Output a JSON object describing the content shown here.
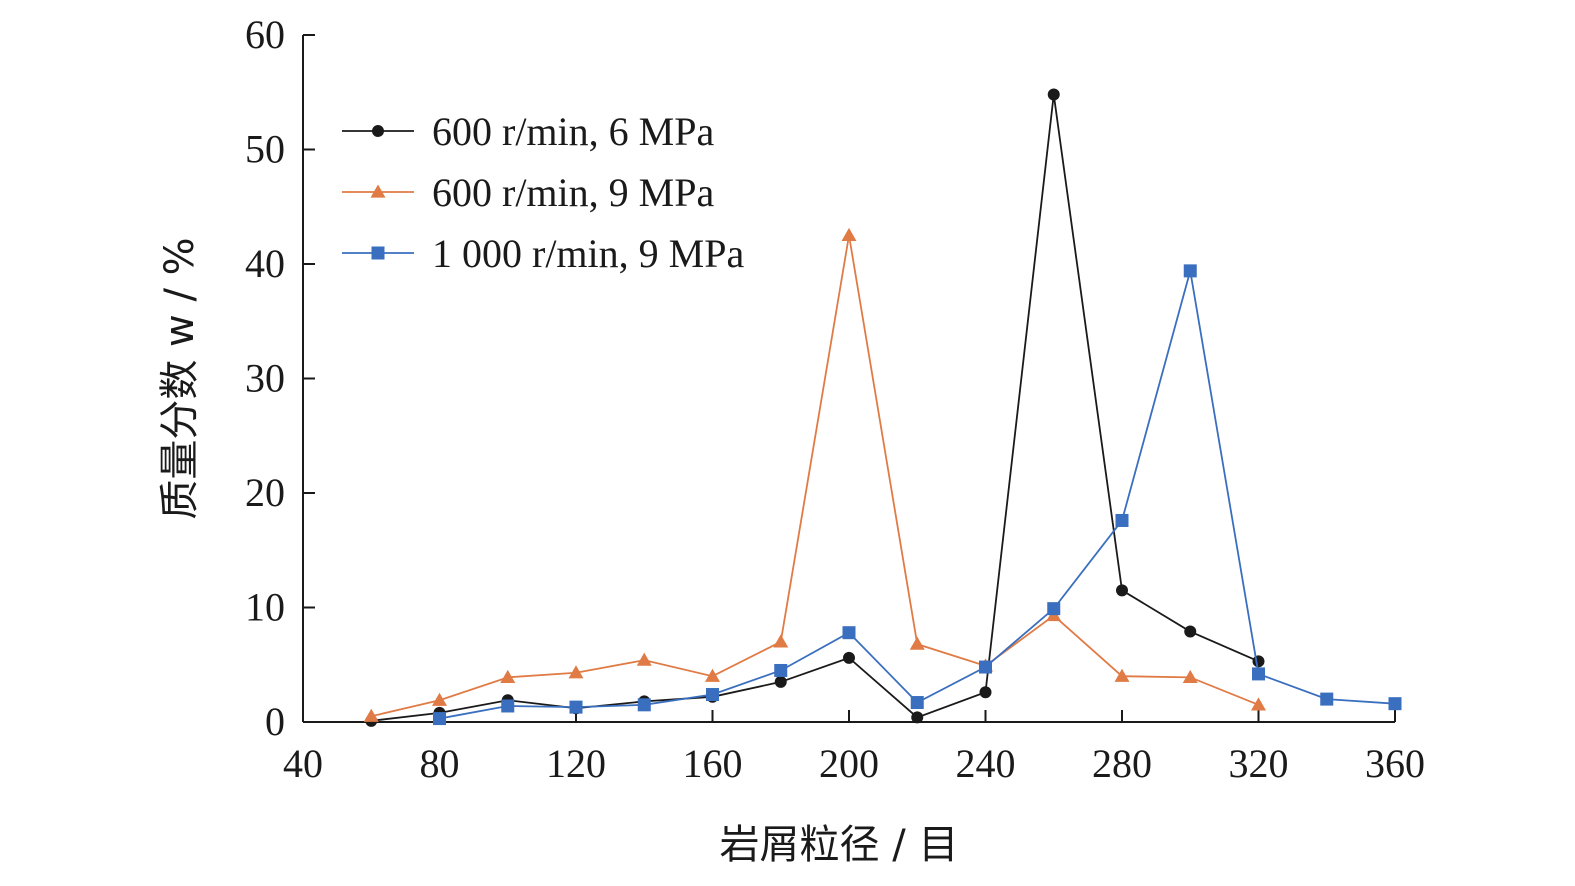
{
  "chart_data": {
    "type": "line",
    "xlabel": "岩屑粒径 / 目",
    "ylabel": "质量分数 w / %",
    "xlim": [
      40,
      360
    ],
    "ylim": [
      0,
      60
    ],
    "xticks": [
      40,
      80,
      120,
      160,
      200,
      240,
      280,
      320,
      360
    ],
    "yticks": [
      0,
      10,
      20,
      30,
      40,
      50,
      60
    ],
    "grid": false,
    "legend_position": "top-left",
    "series": [
      {
        "name": "600 r/min, 6 MPa",
        "color": "#1a1a1a",
        "marker": "circle",
        "points": [
          [
            60,
            0.1
          ],
          [
            80,
            0.8
          ],
          [
            100,
            1.9
          ],
          [
            120,
            1.2
          ],
          [
            140,
            1.8
          ],
          [
            160,
            2.2
          ],
          [
            180,
            3.5
          ],
          [
            200,
            5.6
          ],
          [
            220,
            0.4
          ],
          [
            240,
            2.6
          ],
          [
            260,
            54.8
          ],
          [
            280,
            11.5
          ],
          [
            300,
            7.9
          ],
          [
            320,
            5.3
          ]
        ]
      },
      {
        "name": "600 r/min, 9 MPa",
        "color": "#e07b45",
        "marker": "triangle",
        "points": [
          [
            60,
            0.5
          ],
          [
            80,
            1.9
          ],
          [
            100,
            3.9
          ],
          [
            120,
            4.3
          ],
          [
            140,
            5.4
          ],
          [
            160,
            4.0
          ],
          [
            180,
            7.0
          ],
          [
            200,
            42.5
          ],
          [
            220,
            6.8
          ],
          [
            240,
            4.9
          ],
          [
            260,
            9.3
          ],
          [
            280,
            4.0
          ],
          [
            300,
            3.9
          ],
          [
            320,
            1.5
          ]
        ]
      },
      {
        "name": "1 000 r/min, 9 MPa",
        "color": "#3a6fbf",
        "marker": "square",
        "points": [
          [
            80,
            0.3
          ],
          [
            100,
            1.4
          ],
          [
            120,
            1.3
          ],
          [
            140,
            1.5
          ],
          [
            160,
            2.4
          ],
          [
            180,
            4.5
          ],
          [
            200,
            7.8
          ],
          [
            220,
            1.7
          ],
          [
            240,
            4.8
          ],
          [
            260,
            9.9
          ],
          [
            280,
            17.6
          ],
          [
            300,
            39.4
          ],
          [
            320,
            4.2
          ],
          [
            340,
            2.0
          ],
          [
            360,
            1.6
          ]
        ]
      }
    ]
  }
}
